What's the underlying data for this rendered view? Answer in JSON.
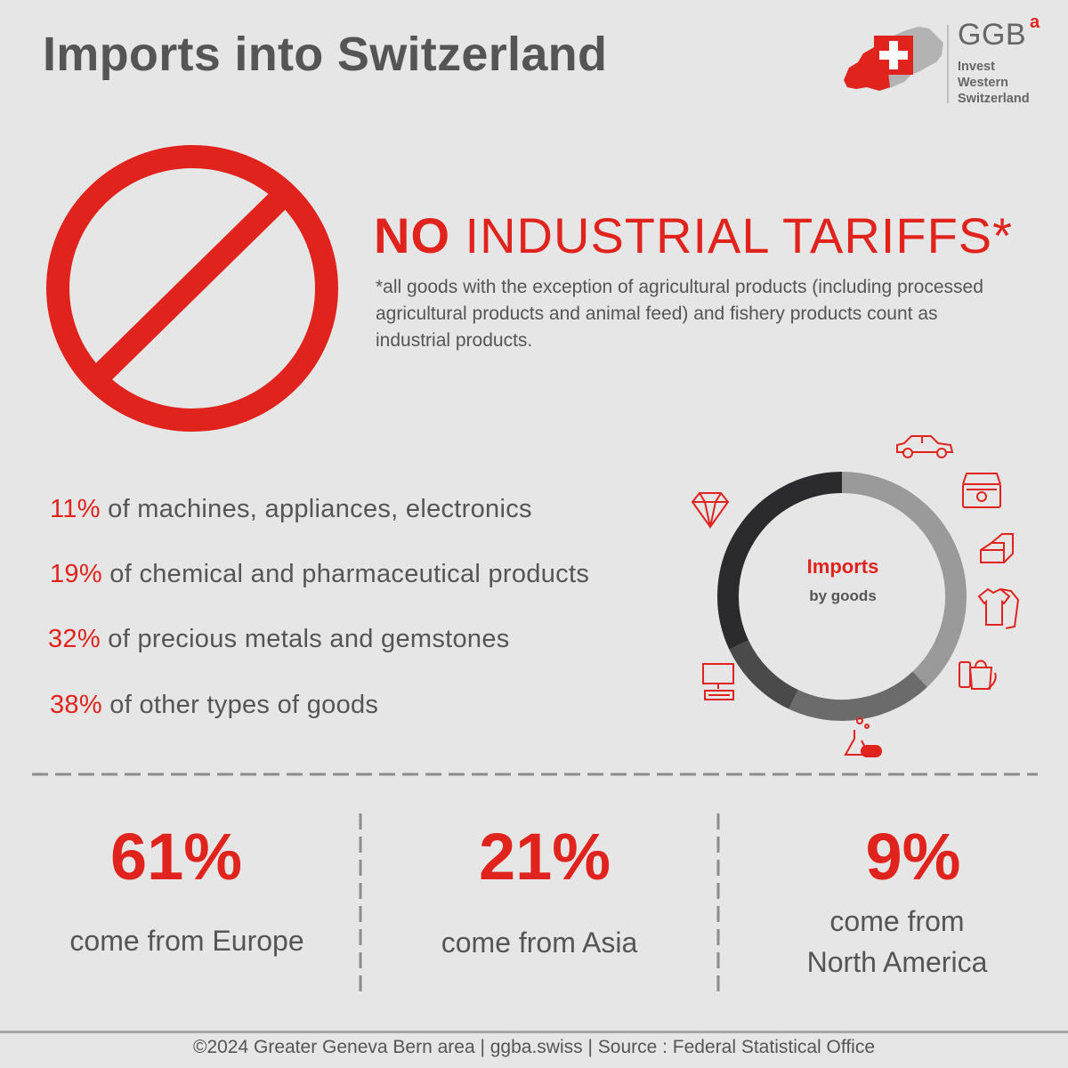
{
  "title": "Imports into Switzerland",
  "logo": {
    "brand": "GGB",
    "brand_superscript": "a",
    "tagline": [
      "Invest",
      "Western",
      "Switzerland"
    ]
  },
  "tariffs": {
    "headline_bold": "NO",
    "headline_rest": " INDUSTRIAL TARIFFS*",
    "footnote": "*all goods with the exception of agricultural products (including processed agricultural products and animal feed) and fishery products count as industrial products."
  },
  "goods": [
    {
      "pct": "11%",
      "label": " of machines, appliances, electronics"
    },
    {
      "pct": "19%",
      "label": " of chemical and pharmaceutical products"
    },
    {
      "pct": "32%",
      "label": " of precious metals and gemstones"
    },
    {
      "pct": "38%",
      "label": " of other types of goods"
    }
  ],
  "chart_data": {
    "type": "pie",
    "variant": "donut",
    "title": "Imports",
    "subtitle": "by goods",
    "categories": [
      "other types of goods",
      "chemical and pharmaceutical products",
      "machines, appliances, electronics",
      "precious metals and gemstones"
    ],
    "values": [
      38,
      19,
      11,
      32
    ],
    "colors": [
      "#9a9a9a",
      "#6b6b6b",
      "#4a4a4a",
      "#2b2b2d"
    ]
  },
  "origins": [
    {
      "pct": "61%",
      "label": [
        "come from Europe"
      ]
    },
    {
      "pct": "21%",
      "label": [
        "come from Asia"
      ]
    },
    {
      "pct": "9%",
      "label": [
        "come from",
        "North America"
      ]
    }
  ],
  "footer": "©2024 Greater Geneva Bern area | ggba.swiss | Source : Federal Statistical Office",
  "colors": {
    "accent": "#e0231c",
    "text": "#555555",
    "background": "#e6e6e6"
  }
}
